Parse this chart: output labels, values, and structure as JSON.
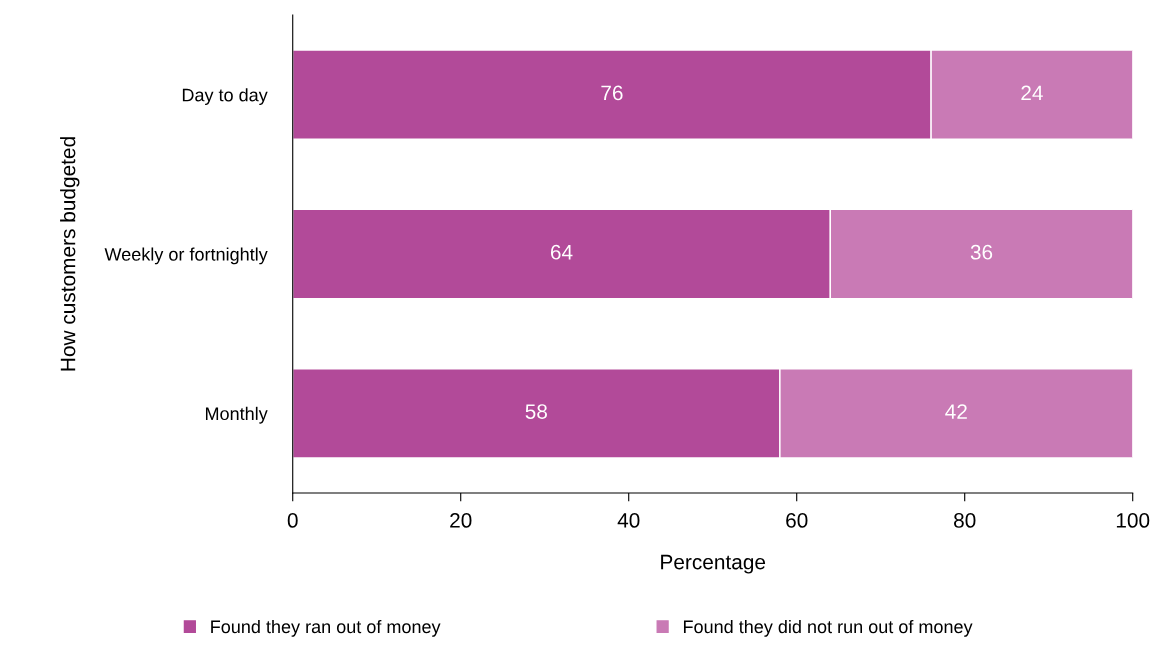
{
  "chart_data": {
    "type": "bar",
    "orientation": "horizontal",
    "stacked": true,
    "ylabel": "How customers budgeted",
    "xlabel": "Percentage",
    "categories": [
      "Day to day",
      "Weekly or fortnightly",
      "Monthly"
    ],
    "series": [
      {
        "name": "Found they ran out of money",
        "color": "#b24a99",
        "values": [
          76,
          64,
          58
        ]
      },
      {
        "name": "Found they did not run out of money",
        "color": "#c97ab5",
        "values": [
          24,
          36,
          42
        ]
      }
    ],
    "xlim": [
      0,
      100
    ],
    "xticks": [
      0,
      20,
      40,
      60,
      80,
      100
    ],
    "data_labels": true,
    "legend": "bottom",
    "grid": false
  }
}
